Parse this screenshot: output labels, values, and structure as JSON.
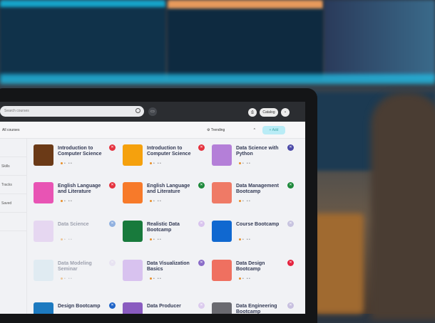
{
  "topbar": {
    "search_placeholder": "Search courses",
    "account_label": "Catalog"
  },
  "subbar": {
    "title": "All courses",
    "filter_label": "Trending",
    "add_label": "+ Add"
  },
  "sidebar": {
    "items": [
      "",
      "Skills",
      "Tracks",
      "Saved",
      ""
    ]
  },
  "cards": [
    {
      "title": "Introduction to Computer Science",
      "tile": "#6b3a17",
      "badge": "#e5333f"
    },
    {
      "title": "Introduction to Computer Science",
      "tile": "#f5a10d",
      "badge": "#e5333f"
    },
    {
      "title": "Data Science with Python",
      "tile": "#b47fd8",
      "badge": "#4c4aa8"
    },
    {
      "title": "English Language and Literature",
      "tile": "#e854b4",
      "badge": "#e5333f"
    },
    {
      "title": "English Language and Literature",
      "tile": "#f77a2a",
      "badge": "#1f8a3c"
    },
    {
      "title": "Data Management Bootcamp",
      "tile": "#ef7a66",
      "badge": "#1f8a3c"
    },
    {
      "title": "Data Science",
      "tile": "#d9b8ee",
      "badge": "#1f64c8",
      "faded": true
    },
    {
      "title": "Realistic Data Bootcamp",
      "tile": "#187a3c",
      "badge": "#d9c4ee"
    },
    {
      "title": "Course Bootcamp",
      "tile": "#1068d0",
      "badge": "#c8c4e0"
    },
    {
      "title": "Data Modeling Seminar",
      "tile": "#cde4ef",
      "badge": "#dcd0ee",
      "faded": true
    },
    {
      "title": "Data Visualization Basics",
      "tile": "#d8c2ef",
      "badge": "#8a6cc8"
    },
    {
      "title": "Data Design Bootcamp",
      "tile": "#ef7060",
      "badge": "#e5233f"
    },
    {
      "title": "Design Bootcamp",
      "tile": "#1d7ac0",
      "badge": "#1f64c8"
    },
    {
      "title": "Data Producer",
      "tile": "#8a5cc0",
      "badge": "#dccbee"
    },
    {
      "title": "Data Engineering Bootcamp",
      "tile": "#6a6a70",
      "badge": "#c8c0e0"
    }
  ],
  "icons": {
    "search": "search-icon",
    "cast": "cast-icon",
    "add": "plus-icon",
    "badge": "close-icon"
  }
}
